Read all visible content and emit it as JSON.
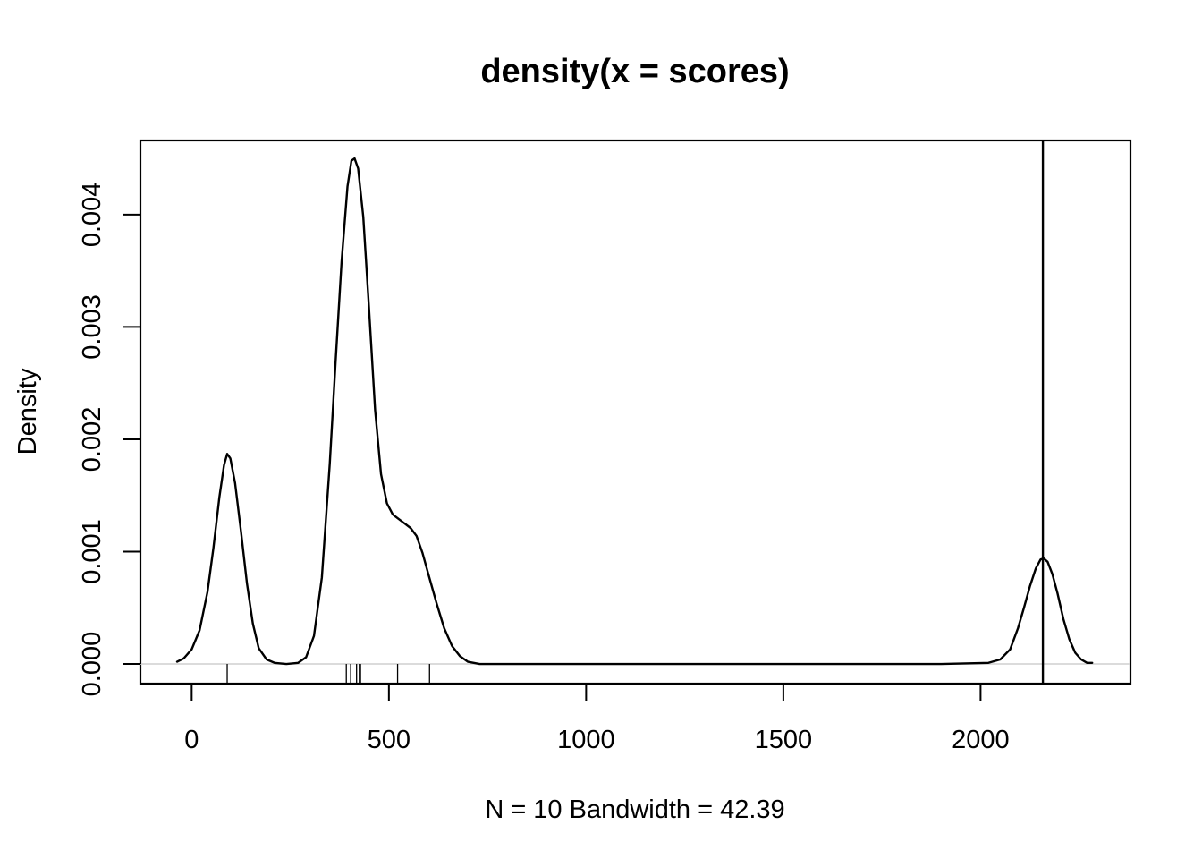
{
  "chart_data": {
    "type": "line",
    "title": "density(x = scores)",
    "xlabel": "N = 10   Bandwidth = 42.39",
    "ylabel": "Density",
    "xlim": [
      -130,
      2380
    ],
    "ylim": [
      -0.000175,
      0.00466
    ],
    "x_ticks": [
      0,
      500,
      1000,
      1500,
      2000
    ],
    "x_tick_labels": [
      "0",
      "500",
      "1000",
      "1500",
      "2000"
    ],
    "y_ticks": [
      0,
      0.001,
      0.002,
      0.003,
      0.004
    ],
    "y_tick_labels": [
      "0.000",
      "0.001",
      "0.002",
      "0.003",
      "0.004"
    ],
    "grid": false,
    "legend": "none",
    "zero_line": true,
    "vertical_line_x": 2158,
    "rug": [
      90,
      392,
      403,
      418,
      425,
      428,
      522,
      603,
      2158
    ],
    "series": [
      {
        "points": [
          [
            -37,
            2e-05
          ],
          [
            -20,
            5e-05
          ],
          [
            0,
            0.00013
          ],
          [
            20,
            0.0003
          ],
          [
            40,
            0.00064
          ],
          [
            55,
            0.00103
          ],
          [
            70,
            0.00148
          ],
          [
            82,
            0.00177
          ],
          [
            90,
            0.00187
          ],
          [
            98,
            0.00183
          ],
          [
            110,
            0.00161
          ],
          [
            125,
            0.00118
          ],
          [
            140,
            0.00072
          ],
          [
            155,
            0.00036
          ],
          [
            170,
            0.00014
          ],
          [
            190,
            4e-05
          ],
          [
            210,
            1e-05
          ],
          [
            240,
            0.0
          ],
          [
            270,
            1e-05
          ],
          [
            290,
            6e-05
          ],
          [
            310,
            0.00025
          ],
          [
            330,
            0.00077
          ],
          [
            350,
            0.00178
          ],
          [
            365,
            0.0027
          ],
          [
            380,
            0.00358
          ],
          [
            395,
            0.00425
          ],
          [
            405,
            0.00448
          ],
          [
            413,
            0.0045
          ],
          [
            422,
            0.00441
          ],
          [
            435,
            0.00398
          ],
          [
            450,
            0.00314
          ],
          [
            465,
            0.00226
          ],
          [
            480,
            0.00169
          ],
          [
            495,
            0.00143
          ],
          [
            510,
            0.00133
          ],
          [
            525,
            0.00129
          ],
          [
            540,
            0.00125
          ],
          [
            555,
            0.00121
          ],
          [
            570,
            0.00114
          ],
          [
            585,
            0.00099
          ],
          [
            600,
            0.0008
          ],
          [
            620,
            0.00055
          ],
          [
            640,
            0.00032
          ],
          [
            660,
            0.00016
          ],
          [
            680,
            7e-05
          ],
          [
            700,
            2e-05
          ],
          [
            730,
            0.0
          ],
          [
            800,
            0.0
          ],
          [
            1000,
            0.0
          ],
          [
            1500,
            0.0
          ],
          [
            1900,
            0.0
          ],
          [
            2020,
            1e-05
          ],
          [
            2050,
            4e-05
          ],
          [
            2075,
            0.00013
          ],
          [
            2095,
            0.00032
          ],
          [
            2110,
            0.0005
          ],
          [
            2125,
            0.00069
          ],
          [
            2140,
            0.00085
          ],
          [
            2152,
            0.00093
          ],
          [
            2160,
            0.00094
          ],
          [
            2170,
            0.00091
          ],
          [
            2182,
            0.0008
          ],
          [
            2195,
            0.00063
          ],
          [
            2210,
            0.0004
          ],
          [
            2225,
            0.00022
          ],
          [
            2240,
            0.0001
          ],
          [
            2255,
            4e-05
          ],
          [
            2270,
            1e-05
          ],
          [
            2283,
            1e-05
          ]
        ]
      }
    ]
  }
}
